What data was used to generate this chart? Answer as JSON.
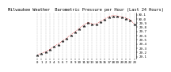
{
  "title": "Milwaukee Weather  Barometric Pressure per Hour (Last 24 Hours)",
  "hours": [
    0,
    1,
    2,
    3,
    4,
    5,
    6,
    7,
    8,
    9,
    10,
    11,
    12,
    13,
    14,
    15,
    16,
    17,
    18,
    19,
    20,
    21,
    22,
    23
  ],
  "pressure": [
    29.14,
    29.18,
    29.22,
    29.28,
    29.35,
    29.4,
    29.48,
    29.55,
    29.62,
    29.7,
    29.78,
    29.85,
    29.92,
    29.88,
    29.88,
    29.94,
    30.0,
    30.06,
    30.08,
    30.07,
    30.05,
    30.02,
    29.98,
    29.88
  ],
  "line_color": "#cc0000",
  "marker_color": "#333333",
  "bg_color": "#ffffff",
  "plot_bg_color": "#ffffff",
  "grid_color": "#999999",
  "ylim": [
    29.05,
    30.15
  ],
  "yticks": [
    29.1,
    29.2,
    29.3,
    29.4,
    29.5,
    29.6,
    29.7,
    29.8,
    29.9,
    30.0,
    30.1
  ],
  "title_fontsize": 3.8,
  "tick_fontsize": 3.0,
  "xtick_labels": [
    "0",
    "1",
    "2",
    "3",
    "4",
    "5",
    "6",
    "7",
    "8",
    "9",
    "10",
    "11",
    "12",
    "13",
    "14",
    "15",
    "16",
    "17",
    "18",
    "19",
    "20",
    "21",
    "22",
    "23"
  ]
}
